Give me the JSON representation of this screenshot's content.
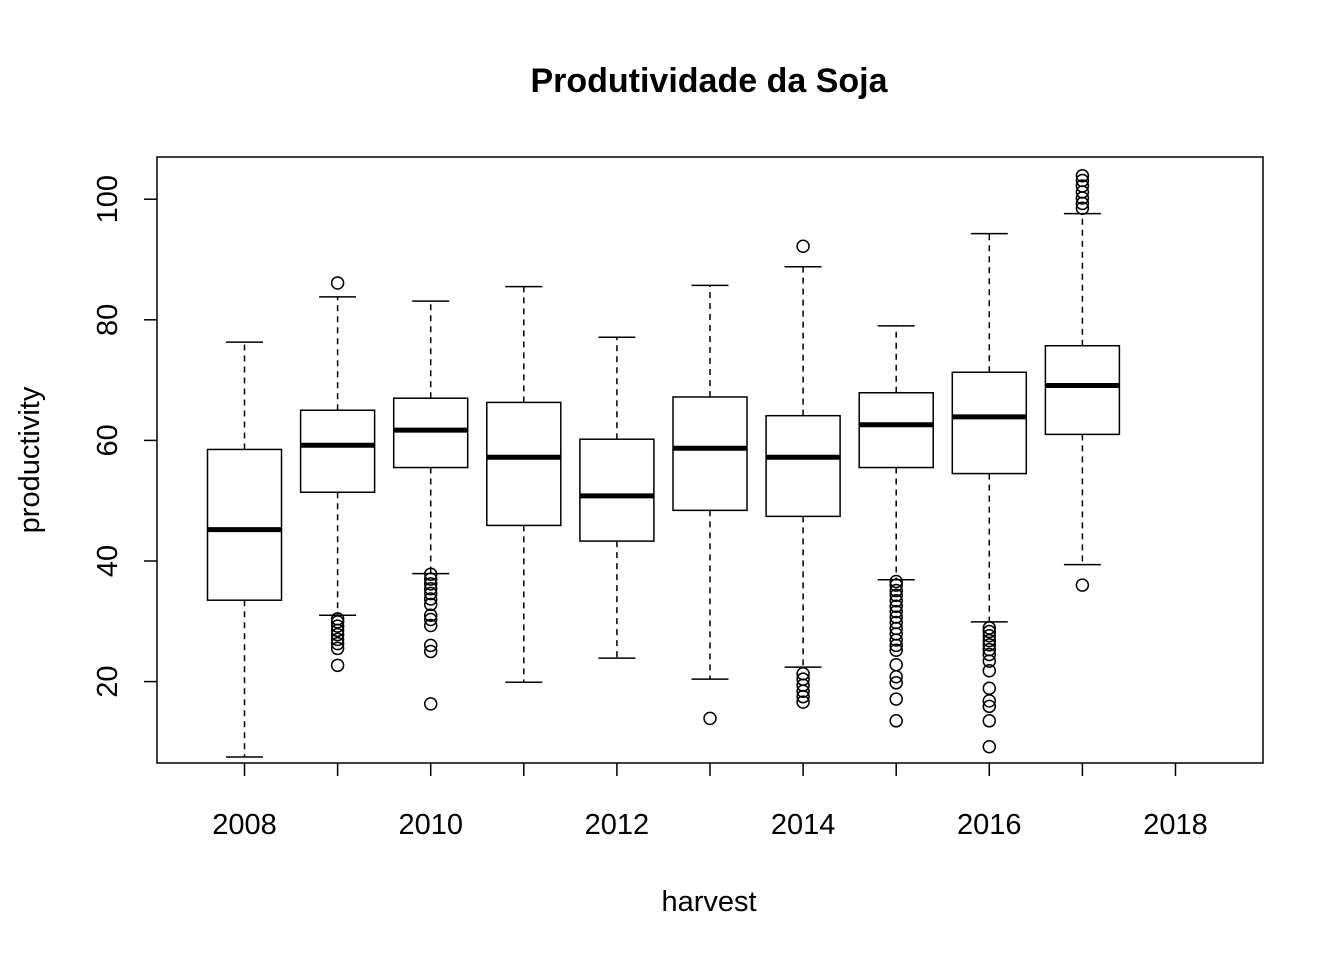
{
  "chart_data": {
    "type": "boxplot",
    "title": "Produtividade da Soja",
    "xlabel": "harvest",
    "ylabel": "productivity",
    "xlim": [
      2007.06,
      2018.94
    ],
    "ylim": [
      6.5,
      107.0
    ],
    "x_ticks": [
      2008,
      2010,
      2012,
      2014,
      2016,
      2018
    ],
    "y_ticks": [
      20,
      40,
      60,
      80,
      100
    ],
    "minor_x_ticks": [
      2009,
      2011,
      2013,
      2015,
      2017
    ],
    "grid": false,
    "legend": "none",
    "boxes": [
      {
        "x": 2008,
        "whisker_low": 7.5,
        "q1": 33.5,
        "median": 45.2,
        "q3": 58.5,
        "whisker_high": 76.3,
        "outliers": []
      },
      {
        "x": 2009,
        "whisker_low": 31.0,
        "q1": 51.4,
        "median": 59.2,
        "q3": 65.0,
        "whisker_high": 83.8,
        "outliers": [
          22.7,
          25.5,
          26.3,
          27.0,
          27.8,
          28.5,
          29.2,
          29.9,
          30.4,
          86.1
        ]
      },
      {
        "x": 2010,
        "whisker_low": 37.9,
        "q1": 55.5,
        "median": 61.7,
        "q3": 67.0,
        "whisker_high": 83.1,
        "outliers": [
          16.3,
          25.0,
          26.0,
          29.3,
          30.3,
          31.0,
          32.8,
          33.7,
          34.6,
          35.4,
          36.2,
          37.0,
          37.8
        ]
      },
      {
        "x": 2011,
        "whisker_low": 19.9,
        "q1": 45.9,
        "median": 57.2,
        "q3": 66.3,
        "whisker_high": 85.5,
        "outliers": []
      },
      {
        "x": 2012,
        "whisker_low": 23.9,
        "q1": 43.3,
        "median": 50.8,
        "q3": 60.2,
        "whisker_high": 77.1,
        "outliers": []
      },
      {
        "x": 2013,
        "whisker_low": 20.4,
        "q1": 48.4,
        "median": 58.7,
        "q3": 67.2,
        "whisker_high": 85.7,
        "outliers": [
          13.9
        ]
      },
      {
        "x": 2014,
        "whisker_low": 22.4,
        "q1": 47.4,
        "median": 57.2,
        "q3": 64.1,
        "whisker_high": 88.8,
        "outliers": [
          16.6,
          17.5,
          18.4,
          19.4,
          20.4,
          21.3,
          92.2
        ]
      },
      {
        "x": 2015,
        "whisker_low": 36.9,
        "q1": 55.5,
        "median": 62.6,
        "q3": 67.9,
        "whisker_high": 79.0,
        "outliers": [
          13.5,
          17.1,
          19.8,
          20.8,
          22.8,
          25.2,
          26.0,
          26.9,
          27.9,
          28.8,
          29.8,
          30.7,
          31.6,
          32.5,
          33.4,
          34.3,
          35.1,
          36.0,
          36.6
        ]
      },
      {
        "x": 2016,
        "whisker_low": 29.9,
        "q1": 54.5,
        "median": 63.9,
        "q3": 71.3,
        "whisker_high": 94.3,
        "outliers": [
          9.2,
          13.5,
          15.9,
          16.8,
          18.9,
          21.8,
          23.4,
          24.5,
          25.3,
          26.1,
          26.8,
          27.6,
          28.3,
          28.9
        ]
      },
      {
        "x": 2017,
        "whisker_low": 39.4,
        "q1": 61.0,
        "median": 69.1,
        "q3": 75.7,
        "whisker_high": 97.6,
        "outliers": [
          36.0,
          98.5,
          99.3,
          100.2,
          101.2,
          102.2,
          103.1,
          103.9
        ]
      }
    ]
  }
}
